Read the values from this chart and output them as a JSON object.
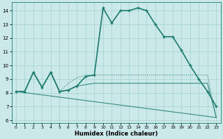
{
  "xlabel": "Humidex (Indice chaleur)",
  "background_color": "#cce9e9",
  "grid_color": "#aad4d4",
  "line_color": "#1a7a6e",
  "xlim": [
    -0.5,
    23.5
  ],
  "ylim": [
    5.8,
    14.6
  ],
  "yticks": [
    6,
    7,
    8,
    9,
    10,
    11,
    12,
    13,
    14
  ],
  "xticks": [
    0,
    1,
    2,
    3,
    4,
    5,
    6,
    7,
    8,
    9,
    10,
    11,
    12,
    13,
    14,
    15,
    16,
    17,
    18,
    19,
    20,
    21,
    22,
    23
  ],
  "curve_main": {
    "x": [
      0,
      1,
      2,
      3,
      4,
      5,
      6,
      7,
      8,
      9,
      10,
      11,
      12,
      13,
      14,
      15,
      16,
      17,
      18,
      19,
      20,
      21,
      22,
      23
    ],
    "y": [
      8.1,
      8.1,
      9.5,
      8.4,
      9.5,
      8.1,
      8.2,
      8.5,
      9.2,
      9.3,
      14.2,
      13.1,
      14.0,
      14.0,
      14.2,
      14.0,
      13.0,
      12.1,
      12.1,
      11.1,
      10.0,
      9.0,
      8.1,
      7.0
    ]
  },
  "curve_dotted": {
    "x": [
      0,
      1,
      2,
      3,
      4,
      5,
      6,
      7,
      8,
      9,
      10,
      11,
      12,
      13,
      14,
      15,
      16,
      17,
      18,
      19,
      20,
      21,
      22,
      23
    ],
    "y": [
      8.1,
      8.1,
      9.5,
      8.4,
      9.5,
      8.1,
      8.7,
      9.1,
      9.3,
      9.3,
      9.3,
      9.3,
      9.3,
      9.3,
      9.3,
      9.3,
      9.3,
      9.3,
      9.3,
      9.3,
      9.3,
      9.3,
      9.3,
      6.2
    ]
  },
  "curve_flat1": {
    "x": [
      0,
      1,
      2,
      3,
      4,
      5,
      6,
      7,
      8,
      9,
      10,
      11,
      12,
      13,
      14,
      15,
      16,
      17,
      18,
      19,
      20,
      21,
      22,
      23
    ],
    "y": [
      8.1,
      8.1,
      9.5,
      8.4,
      9.5,
      8.1,
      8.2,
      8.5,
      8.6,
      8.7,
      8.7,
      8.7,
      8.7,
      8.7,
      8.7,
      8.7,
      8.7,
      8.7,
      8.7,
      8.7,
      8.7,
      8.7,
      8.7,
      6.2
    ]
  },
  "curve_diag": {
    "x": [
      0,
      23
    ],
    "y": [
      8.1,
      6.2
    ]
  }
}
